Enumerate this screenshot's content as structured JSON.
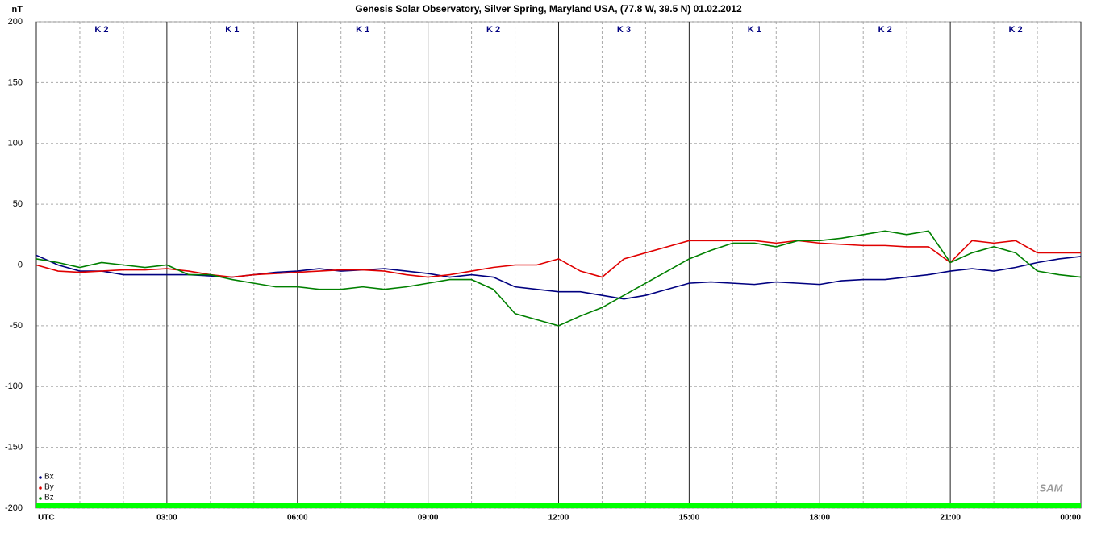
{
  "chart_data": {
    "type": "line",
    "title": "Genesis Solar Observatory, Silver Spring, Maryland USA, (77.8 W, 39.5 N)  01.02.2012",
    "y_unit": "nT",
    "logo": "SAM",
    "k_indices": [
      "K 2",
      "K 1",
      "K 1",
      "K 2",
      "K 3",
      "K 1",
      "K 2",
      "K 2"
    ],
    "x": [
      0,
      0.5,
      1,
      1.5,
      2,
      2.5,
      3,
      3.5,
      4,
      4.5,
      5,
      5.5,
      6,
      6.5,
      7,
      7.5,
      8,
      8.5,
      9,
      9.5,
      10,
      10.5,
      11,
      11.5,
      12,
      12.5,
      13,
      13.5,
      14,
      14.5,
      15,
      15.5,
      16,
      16.5,
      17,
      17.5,
      18,
      18.5,
      19,
      19.5,
      20,
      20.5,
      21,
      21.5,
      22,
      22.5,
      23,
      23.5,
      24
    ],
    "series": [
      {
        "name": "Bx",
        "color": "#000080",
        "values": [
          8,
          0,
          -5,
          -5,
          -8,
          -8,
          -8,
          -8,
          -9,
          -10,
          -8,
          -6,
          -5,
          -3,
          -5,
          -4,
          -3,
          -5,
          -7,
          -10,
          -8,
          -10,
          -18,
          -20,
          -22,
          -22,
          -25,
          -28,
          -25,
          -20,
          -15,
          -14,
          -15,
          -16,
          -14,
          -15,
          -16,
          -13,
          -12,
          -12,
          -10,
          -8,
          -5,
          -3,
          -5,
          -2,
          2,
          5,
          7
        ]
      },
      {
        "name": "By",
        "color": "#e00000",
        "values": [
          0,
          -5,
          -6,
          -5,
          -4,
          -4,
          -3,
          -5,
          -8,
          -10,
          -8,
          -7,
          -6,
          -5,
          -4,
          -4,
          -5,
          -8,
          -10,
          -8,
          -5,
          -2,
          0,
          0,
          5,
          -5,
          -10,
          5,
          10,
          15,
          20,
          20,
          20,
          20,
          18,
          20,
          18,
          17,
          16,
          16,
          15,
          15,
          2,
          20,
          18,
          20,
          10,
          10,
          10
        ]
      },
      {
        "name": "Bz",
        "color": "#008000",
        "values": [
          5,
          2,
          -2,
          2,
          0,
          -2,
          0,
          -8,
          -8,
          -12,
          -15,
          -18,
          -18,
          -20,
          -20,
          -18,
          -20,
          -18,
          -15,
          -12,
          -12,
          -20,
          -40,
          -45,
          -50,
          -42,
          -35,
          -25,
          -15,
          -5,
          5,
          12,
          18,
          18,
          15,
          20,
          20,
          22,
          25,
          28,
          25,
          28,
          2,
          10,
          15,
          10,
          -5,
          -8,
          -10
        ]
      }
    ],
    "xlim": [
      0,
      24
    ],
    "xticks": [
      {
        "value": 0,
        "label": "UTC"
      },
      {
        "value": 3,
        "label": "03:00"
      },
      {
        "value": 6,
        "label": "06:00"
      },
      {
        "value": 9,
        "label": "09:00"
      },
      {
        "value": 12,
        "label": "12:00"
      },
      {
        "value": 15,
        "label": "15:00"
      },
      {
        "value": 18,
        "label": "18:00"
      },
      {
        "value": 21,
        "label": "21:00"
      },
      {
        "value": 24,
        "label": "00:00"
      }
    ],
    "ylim": [
      -200,
      200
    ],
    "yticks": [
      -200,
      -150,
      -100,
      -50,
      0,
      50,
      100,
      150,
      200
    ],
    "grid": true,
    "legend": "bottom-left"
  }
}
